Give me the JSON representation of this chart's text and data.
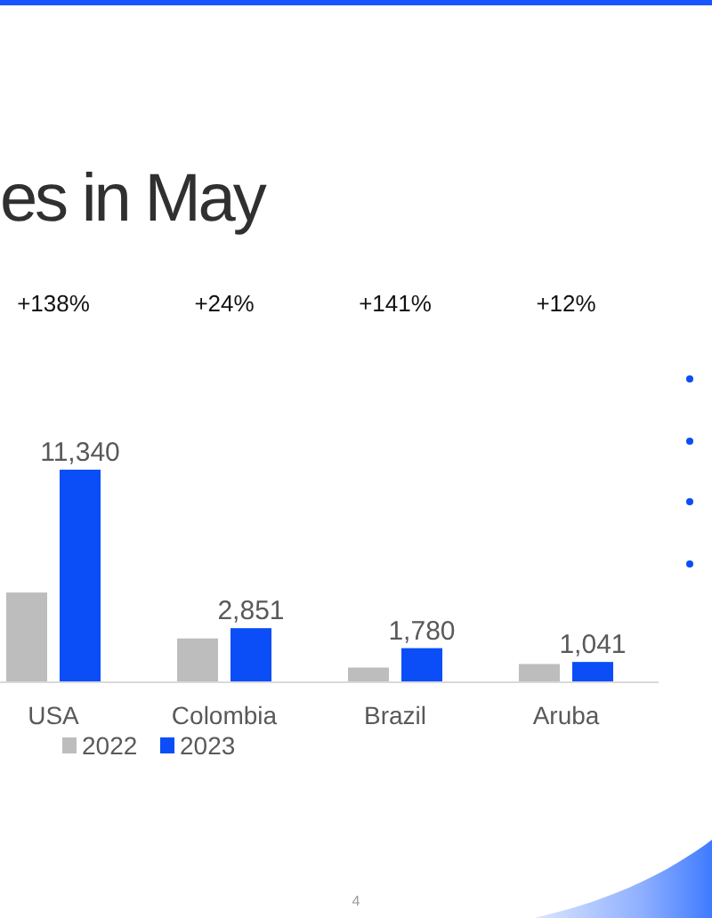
{
  "chart_data": {
    "type": "bar",
    "title": "es in May",
    "categories": [
      "USA",
      "Colombia",
      "Brazil",
      "Aruba"
    ],
    "series": [
      {
        "name": "2022",
        "color": "#bdbdbd",
        "values": [
          4760,
          2300,
          740,
          930
        ]
      },
      {
        "name": "2023",
        "color": "#0b4ef7",
        "values": [
          11340,
          2851,
          1780,
          1041
        ],
        "value_labels": [
          "11,340",
          "2,851",
          "1,780",
          "1,041"
        ]
      }
    ],
    "legend": "bottom",
    "annotations": [
      "+138%",
      "+24%",
      "+141%",
      "+12%",
      "4"
    ]
  }
}
